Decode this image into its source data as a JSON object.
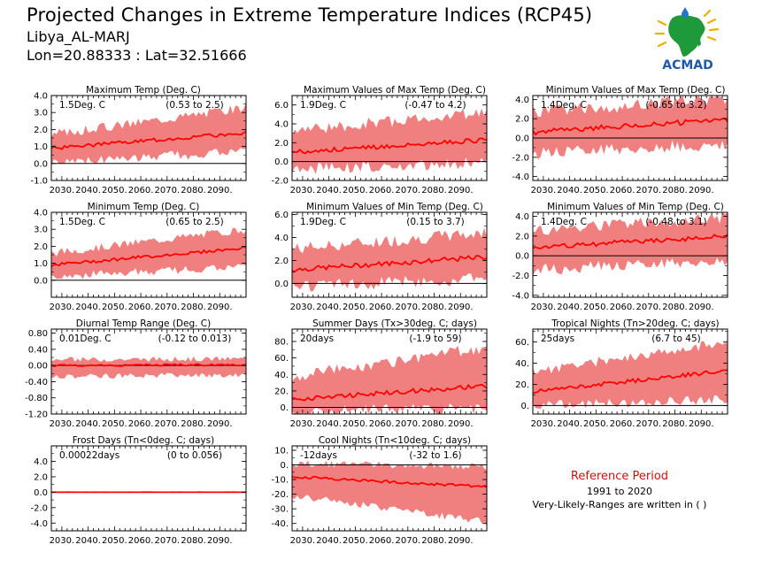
{
  "header": {
    "title": "Projected Changes in Extreme Temperature Indices (RCP45)",
    "location": "Libya_AL-MARJ",
    "coords": "Lon=20.88333 : Lat=32.51666"
  },
  "logo": {
    "text": "ACMAD",
    "icon": "africa-map-logo"
  },
  "reference": {
    "title": "Reference Period",
    "years": "1991 to 2020",
    "note": "Very-Likely-Ranges are written in ( )"
  },
  "colors": {
    "band": "#f08080",
    "line": "#ff0000",
    "zero": "#000000",
    "ref_title": "#d01010"
  },
  "chart_data": [
    {
      "type": "area",
      "title": "Maximum Temp (Deg. C)",
      "summary": "1.5Deg. C",
      "range": "(0.53 to 2.5)",
      "x_ticks": [
        "2030.",
        "2040.",
        "2050.",
        "2060.",
        "2070.",
        "2080.",
        "2090."
      ],
      "ylim": [
        -1,
        4
      ],
      "y_ticks": [
        4,
        3,
        2,
        1,
        0,
        -1
      ],
      "y_tick_labels": [
        "4.0",
        "3.0",
        "2.0",
        "1.0",
        "0.0",
        "-1.0"
      ],
      "x": [
        2026,
        2100
      ],
      "median": {
        "start": 0.9,
        "end": 1.8
      },
      "band_low": {
        "start": 0.2,
        "end": 0.8
      },
      "band_high": {
        "start": 1.6,
        "end": 3.2
      },
      "noise": 0.35
    },
    {
      "type": "area",
      "title": "Maximum Values of Max Temp (Deg. C)",
      "summary": "1.9Deg. C",
      "range": "(-0.47 to 4.2)",
      "x_ticks": [
        "2030.",
        "2040.",
        "2050.",
        "2060.",
        "2070.",
        "2080.",
        "2090."
      ],
      "ylim": [
        -2,
        7
      ],
      "y_ticks": [
        6,
        4,
        2,
        0,
        -2
      ],
      "y_tick_labels": [
        "6.0",
        "4.0",
        "2.0",
        "0.0",
        "-2.0"
      ],
      "x": [
        2026,
        2100
      ],
      "median": {
        "start": 1.0,
        "end": 2.3
      },
      "band_low": {
        "start": -0.6,
        "end": 0.2
      },
      "band_high": {
        "start": 3.0,
        "end": 5.0
      },
      "noise": 0.8
    },
    {
      "type": "area",
      "title": "Minimum Values of Max Temp (Deg. C)",
      "summary": "1.4Deg. C",
      "range": "(-0.65 to 3.2)",
      "x_ticks": [
        "2030.",
        "2040.",
        "2050.",
        "2060.",
        "2070.",
        "2080.",
        "2090."
      ],
      "ylim": [
        -4.4,
        4.4
      ],
      "y_ticks": [
        4,
        2,
        0,
        -2,
        -4
      ],
      "y_tick_labels": [
        "4.0",
        "2.0",
        "0.0",
        "-2.0",
        "-4.0"
      ],
      "x": [
        2026,
        2100
      ],
      "median": {
        "start": 0.6,
        "end": 1.9
      },
      "band_low": {
        "start": -1.3,
        "end": -0.4
      },
      "band_high": {
        "start": 2.4,
        "end": 3.8
      },
      "noise": 0.9
    },
    {
      "type": "area",
      "title": "Minimum Temp (Deg. C)",
      "summary": "1.5Deg. C",
      "range": "(0.65 to 2.5)",
      "x_ticks": [
        "2030.",
        "2040.",
        "2050.",
        "2060.",
        "2070.",
        "2080.",
        "2090."
      ],
      "ylim": [
        -1,
        4
      ],
      "y_ticks": [
        4,
        3,
        2,
        1,
        0
      ],
      "y_tick_labels": [
        "4.0",
        "3.0",
        "2.0",
        "1.0",
        "0.0"
      ],
      "x": [
        2026,
        2100
      ],
      "median": {
        "start": 0.9,
        "end": 1.9
      },
      "band_low": {
        "start": 0.3,
        "end": 0.9
      },
      "band_high": {
        "start": 1.5,
        "end": 2.9
      },
      "noise": 0.3
    },
    {
      "type": "area",
      "title": "Minimum Values of Min Temp (Deg. C)",
      "summary": "1.9Deg. C",
      "range": "(0.15 to 3.7)",
      "x_ticks": [
        "2030.",
        "2040.",
        "2050.",
        "2060.",
        "2070.",
        "2080.",
        "2090."
      ],
      "ylim": [
        -1.2,
        6.2
      ],
      "y_ticks": [
        6,
        4,
        2,
        0
      ],
      "y_tick_labels": [
        "6.0",
        "4.0",
        "2.0",
        "0.0"
      ],
      "x": [
        2026,
        2100
      ],
      "median": {
        "start": 1.2,
        "end": 2.3
      },
      "band_low": {
        "start": 0.0,
        "end": 0.6
      },
      "band_high": {
        "start": 2.8,
        "end": 4.2
      },
      "noise": 0.7
    },
    {
      "type": "area",
      "title": "Minimum Values of Min Temp (Deg. C)",
      "summary": "1.4Deg. C",
      "range": "(-0.48 to 3.1)",
      "x_ticks": [
        "2030.",
        "2040.",
        "2050.",
        "2060.",
        "2070.",
        "2080.",
        "2090."
      ],
      "ylim": [
        -4.2,
        4.4
      ],
      "y_ticks": [
        4,
        2,
        0,
        -2,
        -4
      ],
      "y_tick_labels": [
        "4.0",
        "2.0",
        "0.0",
        "-2.0",
        "-4.0"
      ],
      "x": [
        2026,
        2100
      ],
      "median": {
        "start": 0.8,
        "end": 2.0
      },
      "band_low": {
        "start": -1.2,
        "end": -0.2
      },
      "band_high": {
        "start": 2.3,
        "end": 3.6
      },
      "noise": 0.8
    },
    {
      "type": "area",
      "title": "Diurnal Temp Range (Deg. C)",
      "summary": "0.01Deg. C",
      "range": "(-0.12 to 0.013)",
      "x_ticks": [
        "2030.",
        "2040.",
        "2050.",
        "2060.",
        "2070.",
        "2080.",
        "2090."
      ],
      "ylim": [
        -1.2,
        0.9
      ],
      "y_ticks": [
        0.8,
        0.4,
        0.0,
        -0.4,
        -0.8,
        -1.2
      ],
      "y_tick_labels": [
        "0.80",
        "0.40",
        "0.00",
        "-0.40",
        "-0.80",
        "-1.20"
      ],
      "x": [
        2026,
        2100
      ],
      "median": {
        "start": 0.0,
        "end": 0.02
      },
      "band_low": {
        "start": -0.25,
        "end": -0.2
      },
      "band_high": {
        "start": 0.12,
        "end": 0.14
      },
      "noise": 0.08
    },
    {
      "type": "area",
      "title": "Summer Days (Tx>30deg. C; days)",
      "summary": "20days",
      "range": "(-1.9 to 59)",
      "x_ticks": [
        "2030.",
        "2040.",
        "2050.",
        "2060.",
        "2070.",
        "2080.",
        "2090."
      ],
      "ylim": [
        -8,
        95
      ],
      "y_ticks": [
        80,
        60,
        40,
        20,
        0
      ],
      "y_tick_labels": [
        "80.",
        "60.",
        "40.",
        "20.",
        "0."
      ],
      "x": [
        2026,
        2100
      ],
      "median": {
        "start": 10,
        "end": 26
      },
      "band_low": {
        "start": -2,
        "end": 2
      },
      "band_high": {
        "start": 35,
        "end": 70
      },
      "noise": 9
    },
    {
      "type": "area",
      "title": "Tropical Nights (Tn>20deg. C; days)",
      "summary": "25days",
      "range": "(6.7 to 45)",
      "x_ticks": [
        "2030.",
        "2040.",
        "2050.",
        "2060.",
        "2070.",
        "2080.",
        "2090."
      ],
      "ylim": [
        -8,
        72
      ],
      "y_ticks": [
        60,
        40,
        20,
        0
      ],
      "y_tick_labels": [
        "60.",
        "40.",
        "20.",
        "0."
      ],
      "x": [
        2026,
        2100
      ],
      "median": {
        "start": 13,
        "end": 33
      },
      "band_low": {
        "start": 2,
        "end": 8
      },
      "band_high": {
        "start": 30,
        "end": 58
      },
      "noise": 6
    },
    {
      "type": "area",
      "title": "Frost Days (Tn<0deg. C; days)",
      "summary": "0.00022days",
      "range": "(0 to 0.056)",
      "x_ticks": [
        "2030.",
        "2040.",
        "2050.",
        "2060.",
        "2070.",
        "2080.",
        "2090."
      ],
      "ylim": [
        -5,
        6
      ],
      "y_ticks": [
        4,
        2,
        0,
        -2,
        -4
      ],
      "y_tick_labels": [
        "4.0",
        "2.0",
        "0.0",
        "-2.0",
        "-4.0"
      ],
      "x": [
        2026,
        2100
      ],
      "median": {
        "start": 0,
        "end": 0
      },
      "band_low": {
        "start": 0,
        "end": 0
      },
      "band_high": {
        "start": 0.06,
        "end": 0.06
      },
      "noise": 0.02
    },
    {
      "type": "area",
      "title": "Cool Nights (Tn<10deg. C; days)",
      "summary": "-12days",
      "range": "(-32 to 1.6)",
      "x_ticks": [
        "2030.",
        "2040.",
        "2050.",
        "2060.",
        "2070.",
        "2080.",
        "2090."
      ],
      "ylim": [
        -45,
        13
      ],
      "y_ticks": [
        10,
        0,
        -10,
        -20,
        -30,
        -40
      ],
      "y_tick_labels": [
        "10.",
        "0.",
        "-10.",
        "-20.",
        "-30.",
        "-40."
      ],
      "x": [
        2026,
        2100
      ],
      "median": {
        "start": -8,
        "end": -15
      },
      "band_low": {
        "start": -20,
        "end": -38
      },
      "band_high": {
        "start": 0,
        "end": -2
      },
      "noise": 3
    }
  ]
}
